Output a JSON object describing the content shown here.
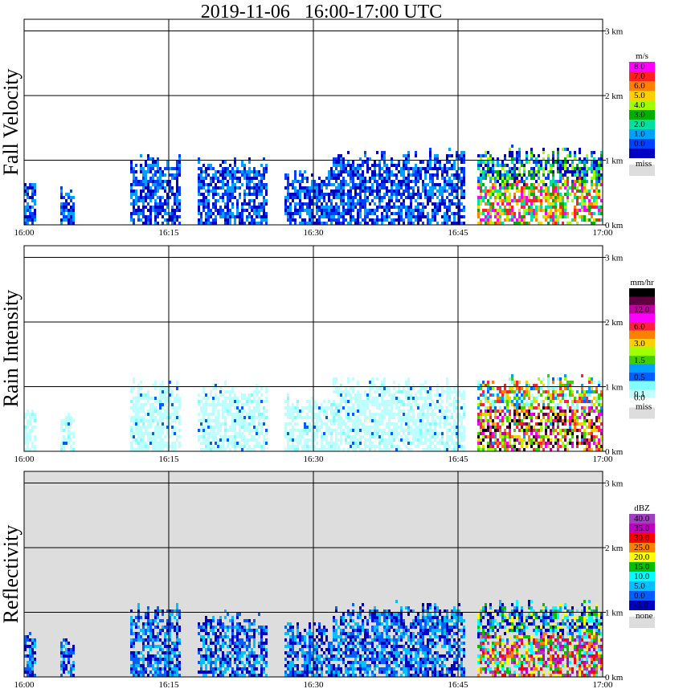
{
  "chart_data": {
    "type": "heatmap",
    "title": "2019-11-06   16:00-17:00 UTC",
    "x_tick_labels": [
      "16:00",
      "16:15",
      "16:30",
      "16:45",
      "17:00"
    ],
    "y_tick_labels": [
      "0 km",
      "1 km",
      "2 km",
      "3 km"
    ],
    "panels": [
      {
        "name": "Fall Velocity",
        "background": "white",
        "unit": "m/s",
        "colorbar": [
          {
            "label": "8.0",
            "color": "#ff00ff"
          },
          {
            "label": "7.0",
            "color": "#ff2020"
          },
          {
            "label": "6.0",
            "color": "#ff8000"
          },
          {
            "label": "5.0",
            "color": "#ffd000"
          },
          {
            "label": "4.0",
            "color": "#a0ff00"
          },
          {
            "label": "3.0",
            "color": "#00b000"
          },
          {
            "label": "2.0",
            "color": "#00e0a0"
          },
          {
            "label": "1.0",
            "color": "#00a0ff"
          },
          {
            "label": "0.0",
            "color": "#0040ff"
          },
          {
            "label": "",
            "color": "#0000c0"
          }
        ],
        "missing": {
          "label": "miss",
          "color": "#dddddd"
        }
      },
      {
        "name": "Rain Intensity",
        "background": "white",
        "unit": "mm/hr",
        "colorbar": [
          {
            "label": "48.0",
            "color": "#000000"
          },
          {
            "label": "",
            "color": "#600040"
          },
          {
            "label": "12.0",
            "color": "#c000a0"
          },
          {
            "label": "",
            "color": "#ff00ff"
          },
          {
            "label": "6.0",
            "color": "#ff2040"
          },
          {
            "label": "",
            "color": "#ff8000"
          },
          {
            "label": "3.0",
            "color": "#ffd000"
          },
          {
            "label": "",
            "color": "#a0ff00"
          },
          {
            "label": "1.5",
            "color": "#40d000"
          },
          {
            "label": "",
            "color": "#00a0ff"
          },
          {
            "label": "0.5",
            "color": "#0060ff"
          },
          {
            "label": "",
            "color": "#80ffff"
          },
          {
            "label": "0.1",
            "color": "#c0ffff"
          }
        ],
        "extra_label": "0.0",
        "missing": {
          "label": "miss",
          "color": "#dddddd"
        }
      },
      {
        "name": "Reflectivity",
        "background": "gray",
        "unit": "dBZ",
        "colorbar": [
          {
            "label": "40.0",
            "color": "#a040c0"
          },
          {
            "label": "35.0",
            "color": "#c000c0"
          },
          {
            "label": "30.0",
            "color": "#ff0000"
          },
          {
            "label": "25.0",
            "color": "#ff8000"
          },
          {
            "label": "20.0",
            "color": "#ffff00"
          },
          {
            "label": "15.0",
            "color": "#00c000"
          },
          {
            "label": "10.0",
            "color": "#00ffff"
          },
          {
            "label": "5.0",
            "color": "#00c0ff"
          },
          {
            "label": "0.0",
            "color": "#0060ff"
          },
          {
            "label": "-5.0",
            "color": "#0000c0"
          }
        ],
        "missing": {
          "label": "none",
          "color": "#dddddd"
        }
      }
    ]
  }
}
